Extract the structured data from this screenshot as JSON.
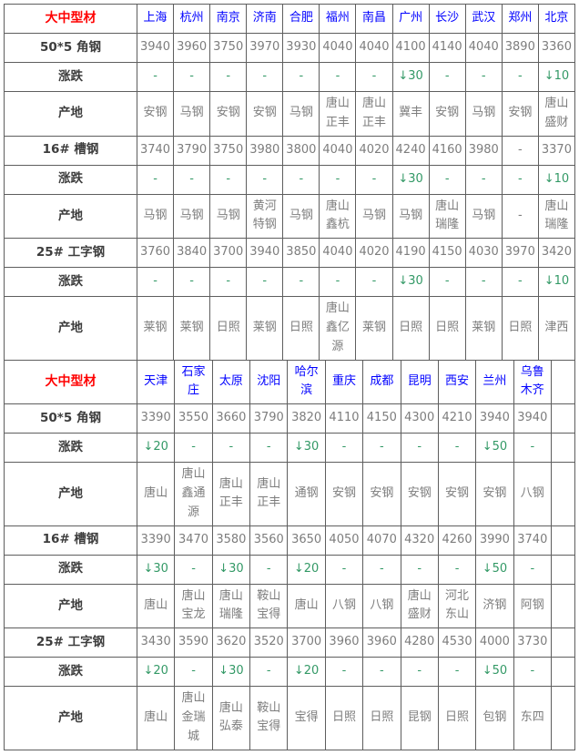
{
  "colors": {
    "section_label": "#ff0000",
    "city_text": "#0000ff",
    "value_text": "#7d7d7d",
    "change_text": "#339966",
    "row_label_text": "#3d3d3d",
    "border": "#5e5e5e"
  },
  "icons": {
    "down_arrow": "↓"
  },
  "sections": [
    {
      "header_label": "大中型材",
      "cities": [
        "上海",
        "杭州",
        "南京",
        "济南",
        "合肥",
        "福州",
        "南昌",
        "广州",
        "长沙",
        "武汉",
        "郑州",
        "北京"
      ],
      "rows": [
        {
          "label": "50*5 角钢",
          "kind": "price",
          "values": [
            "3940",
            "3960",
            "3750",
            "3970",
            "3930",
            "4040",
            "4040",
            "4100",
            "4140",
            "4040",
            "3890",
            "3360"
          ]
        },
        {
          "label": "涨跌",
          "kind": "change",
          "values": [
            "-",
            "-",
            "-",
            "-",
            "-",
            "-",
            "-",
            "↓30",
            "-",
            "-",
            "-",
            "↓10"
          ]
        },
        {
          "label": "产地",
          "kind": "origin",
          "values": [
            "安钢",
            "马钢",
            "安钢",
            "安钢",
            "马钢",
            "唐山正丰",
            "唐山正丰",
            "冀丰",
            "安钢",
            "马钢",
            "安钢",
            "唐山盛财"
          ]
        },
        {
          "label": "16# 槽钢",
          "kind": "price",
          "values": [
            "3740",
            "3790",
            "3750",
            "3980",
            "3800",
            "4040",
            "4020",
            "4240",
            "4160",
            "3980",
            "-",
            "3370"
          ]
        },
        {
          "label": "涨跌",
          "kind": "change",
          "values": [
            "-",
            "-",
            "-",
            "-",
            "-",
            "-",
            "-",
            "↓30",
            "-",
            "-",
            "-",
            "↓10"
          ]
        },
        {
          "label": "产地",
          "kind": "origin",
          "values": [
            "马钢",
            "马钢",
            "马钢",
            "黄河特钢",
            "马钢",
            "唐山鑫杭",
            "马钢",
            "马钢",
            "唐山瑞隆",
            "马钢",
            "-",
            "唐山瑞隆"
          ]
        },
        {
          "label": "25# 工字钢",
          "kind": "price",
          "values": [
            "3760",
            "3840",
            "3700",
            "3940",
            "3850",
            "4040",
            "4020",
            "4190",
            "4150",
            "4030",
            "3970",
            "3420"
          ]
        },
        {
          "label": "涨跌",
          "kind": "change",
          "values": [
            "-",
            "-",
            "-",
            "-",
            "-",
            "-",
            "-",
            "↓30",
            "-",
            "-",
            "-",
            "↓10"
          ]
        },
        {
          "label": "产地",
          "kind": "origin",
          "values": [
            "莱钢",
            "莱钢",
            "日照",
            "莱钢",
            "日照",
            "唐山鑫亿源",
            "莱钢",
            "日照",
            "日照",
            "莱钢",
            "日照",
            "津西"
          ]
        }
      ]
    },
    {
      "header_label": "大中型材",
      "cities": [
        "天津",
        "石家庄",
        "太原",
        "沈阳",
        "哈尔滨",
        "重庆",
        "成都",
        "昆明",
        "西安",
        "兰州",
        "乌鲁木齐",
        ""
      ],
      "rows": [
        {
          "label": "50*5 角钢",
          "kind": "price",
          "values": [
            "3390",
            "3550",
            "3660",
            "3790",
            "3820",
            "4110",
            "4150",
            "4300",
            "4210",
            "3940",
            "3940",
            ""
          ]
        },
        {
          "label": "涨跌",
          "kind": "change",
          "values": [
            "↓20",
            "-",
            "-",
            "-",
            "↓30",
            "-",
            "-",
            "-",
            "-",
            "↓50",
            "-",
            ""
          ]
        },
        {
          "label": "产地",
          "kind": "origin",
          "values": [
            "唐山",
            "唐山鑫通源",
            "唐山正丰",
            "唐山正丰",
            "通钢",
            "安钢",
            "安钢",
            "安钢",
            "安钢",
            "安钢",
            "八钢",
            ""
          ]
        },
        {
          "label": "16# 槽钢",
          "kind": "price",
          "values": [
            "3390",
            "3470",
            "3580",
            "3560",
            "3650",
            "4050",
            "4070",
            "4320",
            "4260",
            "3990",
            "3740",
            ""
          ]
        },
        {
          "label": "涨跌",
          "kind": "change",
          "values": [
            "↓30",
            "-",
            "↓30",
            "-",
            "↓20",
            "-",
            "-",
            "-",
            "-",
            "↓50",
            "-",
            ""
          ]
        },
        {
          "label": "产地",
          "kind": "origin",
          "values": [
            "唐山",
            "唐山宝龙",
            "唐山瑞隆",
            "鞍山宝得",
            "唐山",
            "八钢",
            "八钢",
            "唐山盛财",
            "河北东山",
            "济钢",
            "阿钢",
            ""
          ]
        },
        {
          "label": "25# 工字钢",
          "kind": "price",
          "values": [
            "3430",
            "3590",
            "3620",
            "3520",
            "3700",
            "3960",
            "3960",
            "4280",
            "4530",
            "4000",
            "3730",
            ""
          ]
        },
        {
          "label": "涨跌",
          "kind": "change",
          "values": [
            "↓20",
            "-",
            "↓30",
            "-",
            "↓20",
            "-",
            "-",
            "-",
            "-",
            "↓50",
            "-",
            ""
          ]
        },
        {
          "label": "产地",
          "kind": "origin",
          "values": [
            "唐山",
            "唐山金瑞城",
            "唐山弘泰",
            "鞍山宝得",
            "宝得",
            "日照",
            "日照",
            "昆钢",
            "日照",
            "包钢",
            "东四",
            ""
          ]
        }
      ]
    }
  ]
}
